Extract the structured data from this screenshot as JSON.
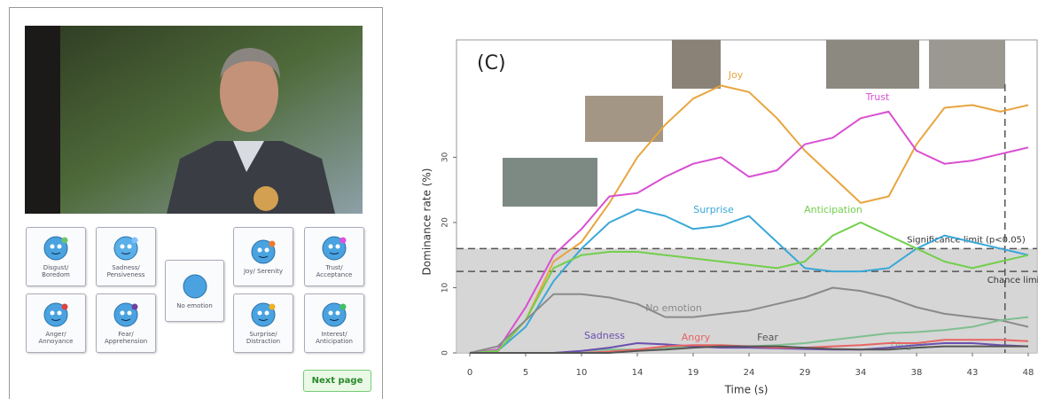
{
  "panel": {
    "buttons": [
      "Disgust/ Boredom",
      "Sadness/ Pensiveness",
      "No emotion",
      "Joy/ Serenity",
      "Trust/ Acceptance",
      "Anger/ Annoyance",
      "Fear/ Apprehension",
      "Surprise/ Distraction",
      "Interest/ Anticipation"
    ],
    "next_button": "Next page"
  },
  "chart_data": {
    "type": "line",
    "annotation": "(C)",
    "xlabel": "Time (s)",
    "ylabel": "Dominance rate (%)",
    "x": [
      0,
      2.4,
      4.8,
      7.2,
      9.6,
      12,
      14.4,
      16.8,
      19.2,
      21.6,
      24,
      26.4,
      28.8,
      31.2,
      33.6,
      36,
      38.4,
      40.8,
      43.2,
      45.6,
      48
    ],
    "series": [
      {
        "name": "Joy",
        "color": "#e8a53f",
        "values": [
          0,
          0.2,
          5,
          14,
          17,
          23,
          30,
          35,
          39,
          41,
          40,
          36,
          31,
          27,
          23,
          24,
          32,
          37.6,
          38,
          37,
          38
        ]
      },
      {
        "name": "Trust",
        "color": "#d94fd1",
        "values": [
          0,
          0.5,
          7,
          15,
          19,
          24,
          24.5,
          27,
          29,
          30,
          27,
          28,
          32,
          33,
          36,
          37,
          31,
          29,
          29.5,
          30.5,
          31.5
        ]
      },
      {
        "name": "Surprise",
        "color": "#3aa8d8",
        "values": [
          0,
          0.3,
          4,
          11,
          16,
          20,
          22,
          21,
          19,
          19.5,
          21,
          17,
          13,
          12.5,
          12.5,
          13,
          16,
          18,
          17,
          16,
          15
        ]
      },
      {
        "name": "Anticipation",
        "color": "#72cf4c",
        "values": [
          0,
          0.3,
          5,
          13,
          15,
          15.5,
          15.5,
          15,
          14.5,
          14,
          13.5,
          13,
          14,
          18,
          20,
          18,
          16,
          14,
          13,
          14,
          15
        ]
      },
      {
        "name": "No emotion",
        "color": "#8a8a8a",
        "values": [
          0,
          1,
          5,
          9,
          9,
          8.5,
          7.5,
          5.5,
          5.5,
          6,
          6.5,
          7.5,
          8.5,
          10,
          9.5,
          8.5,
          7,
          6,
          5.5,
          5,
          4
        ]
      },
      {
        "name": "Disgust",
        "color": "#7fbf8f",
        "values": [
          0,
          0,
          0,
          0,
          0.3,
          0.5,
          0.5,
          0.8,
          1,
          1,
          1,
          1.2,
          1.5,
          2,
          2.5,
          3,
          3.2,
          3.5,
          4,
          5,
          5.5
        ]
      },
      {
        "name": "Sadness",
        "color": "#6b4fb0",
        "values": [
          0,
          0,
          0,
          0,
          0.3,
          0.8,
          1.5,
          1.3,
          1,
          0.8,
          0.8,
          0.7,
          0.6,
          0.5,
          0.5,
          0.8,
          1.2,
          1.5,
          1.5,
          1.2,
          1
        ]
      },
      {
        "name": "Angry",
        "color": "#e86464",
        "values": [
          0,
          0,
          0,
          0,
          0,
          0.2,
          0.5,
          1,
          1.2,
          1.2,
          1,
          0.8,
          0.8,
          1,
          1.2,
          1.5,
          1.5,
          2,
          2,
          2,
          1.8
        ]
      },
      {
        "name": "Fear",
        "color": "#555555",
        "values": [
          0,
          0,
          0,
          0,
          0,
          0,
          0.3,
          0.5,
          0.8,
          1,
          1,
          1,
          0.8,
          0.6,
          0.5,
          0.5,
          0.8,
          1,
          1,
          1,
          1
        ]
      }
    ],
    "reference_lines": [
      {
        "label": "Significance limit (p<0.05)",
        "value": 16
      },
      {
        "label": "Chance limit",
        "value": 12.5
      }
    ],
    "vline": 46,
    "xlim": [
      0,
      48
    ],
    "ylim": [
      0,
      48
    ],
    "xticks": [
      0,
      {
        "value": 4.8,
        "label": "5"
      },
      {
        "value": 9.6,
        "label": "10"
      },
      {
        "value": 14.4,
        "label": "14"
      },
      {
        "value": 19.2,
        "label": "19"
      },
      24,
      {
        "value": 28.8,
        "label": "29"
      },
      {
        "value": 33.6,
        "label": "34"
      },
      {
        "value": 38.4,
        "label": "38"
      },
      {
        "value": 43.2,
        "label": "43"
      },
      48
    ],
    "yticks": [
      0,
      10,
      20,
      30
    ]
  }
}
